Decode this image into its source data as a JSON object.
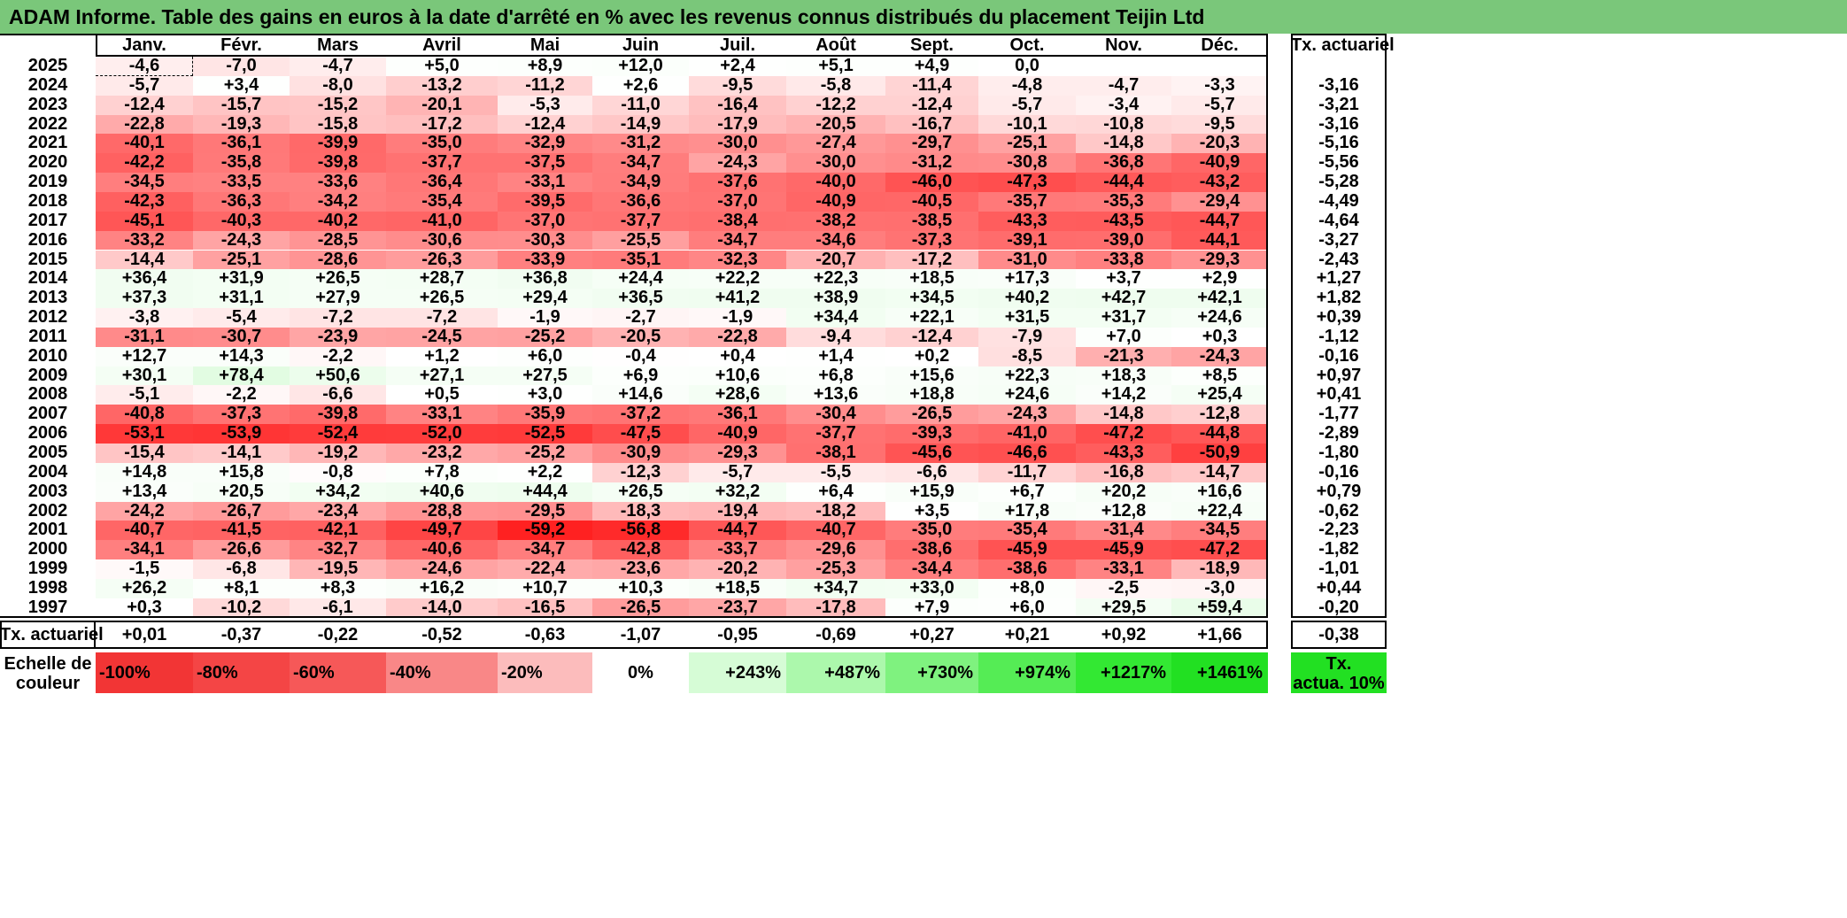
{
  "title": "ADAM Informe. Table des gains en euros à la date d'arrêté en % avec les revenus connus distribués du placement Teijin Ltd",
  "months": [
    "Janv.",
    "Févr.",
    "Mars",
    "Avril",
    "Mai",
    "Juin",
    "Juil.",
    "Août",
    "Sept.",
    "Oct.",
    "Nov.",
    "Déc."
  ],
  "actuarial_header": "Tx. actuariel",
  "rows": [
    {
      "year": "2025",
      "values": [
        "-4,6",
        "-7,0",
        "-4,7",
        "+5,0",
        "+8,9",
        "+12,0",
        "+2,4",
        "+5,1",
        "+4,9",
        "0,0",
        "",
        ""
      ],
      "rate": ""
    },
    {
      "year": "2024",
      "values": [
        "-5,7",
        "+3,4",
        "-8,0",
        "-13,2",
        "-11,2",
        "+2,6",
        "-9,5",
        "-5,8",
        "-11,4",
        "-4,8",
        "-4,7",
        "-3,3"
      ],
      "rate": "-3,16"
    },
    {
      "year": "2023",
      "values": [
        "-12,4",
        "-15,7",
        "-15,2",
        "-20,1",
        "-5,3",
        "-11,0",
        "-16,4",
        "-12,2",
        "-12,4",
        "-5,7",
        "-3,4",
        "-5,7"
      ],
      "rate": "-3,21"
    },
    {
      "year": "2022",
      "values": [
        "-22,8",
        "-19,3",
        "-15,8",
        "-17,2",
        "-12,4",
        "-14,9",
        "-17,9",
        "-20,5",
        "-16,7",
        "-10,1",
        "-10,8",
        "-9,5"
      ],
      "rate": "-3,16"
    },
    {
      "year": "2021",
      "values": [
        "-40,1",
        "-36,1",
        "-39,9",
        "-35,0",
        "-32,9",
        "-31,2",
        "-30,0",
        "-27,4",
        "-29,7",
        "-25,1",
        "-14,8",
        "-20,3"
      ],
      "rate": "-5,16"
    },
    {
      "year": "2020",
      "values": [
        "-42,2",
        "-35,8",
        "-39,8",
        "-37,7",
        "-37,5",
        "-34,7",
        "-24,3",
        "-30,0",
        "-31,2",
        "-30,8",
        "-36,8",
        "-40,9"
      ],
      "rate": "-5,56"
    },
    {
      "year": "2019",
      "values": [
        "-34,5",
        "-33,5",
        "-33,6",
        "-36,4",
        "-33,1",
        "-34,9",
        "-37,6",
        "-40,0",
        "-46,0",
        "-47,3",
        "-44,4",
        "-43,2"
      ],
      "rate": "-5,28"
    },
    {
      "year": "2018",
      "values": [
        "-42,3",
        "-36,3",
        "-34,2",
        "-35,4",
        "-39,5",
        "-36,6",
        "-37,0",
        "-40,9",
        "-40,5",
        "-35,7",
        "-35,3",
        "-29,4"
      ],
      "rate": "-4,49"
    },
    {
      "year": "2017",
      "values": [
        "-45,1",
        "-40,3",
        "-40,2",
        "-41,0",
        "-37,0",
        "-37,7",
        "-38,4",
        "-38,2",
        "-38,5",
        "-43,3",
        "-43,5",
        "-44,7"
      ],
      "rate": "-4,64"
    },
    {
      "year": "2016",
      "values": [
        "-33,2",
        "-24,3",
        "-28,5",
        "-30,6",
        "-30,3",
        "-25,5",
        "-34,7",
        "-34,6",
        "-37,3",
        "-39,1",
        "-39,0",
        "-44,1"
      ],
      "rate": "-3,27"
    },
    {
      "year": "2015",
      "values": [
        "-14,4",
        "-25,1",
        "-28,6",
        "-26,3",
        "-33,9",
        "-35,1",
        "-32,3",
        "-20,7",
        "-17,2",
        "-31,0",
        "-33,8",
        "-29,3"
      ],
      "rate": "-2,43"
    },
    {
      "year": "2014",
      "values": [
        "+36,4",
        "+31,9",
        "+26,5",
        "+28,7",
        "+36,8",
        "+24,4",
        "+22,2",
        "+22,3",
        "+18,5",
        "+17,3",
        "+3,7",
        "+2,9"
      ],
      "rate": "+1,27"
    },
    {
      "year": "2013",
      "values": [
        "+37,3",
        "+31,1",
        "+27,9",
        "+26,5",
        "+29,4",
        "+36,5",
        "+41,2",
        "+38,9",
        "+34,5",
        "+40,2",
        "+42,7",
        "+42,1"
      ],
      "rate": "+1,82"
    },
    {
      "year": "2012",
      "values": [
        "-3,8",
        "-5,4",
        "-7,2",
        "-7,2",
        "-1,9",
        "-2,7",
        "-1,9",
        "+34,4",
        "+22,1",
        "+31,5",
        "+31,7",
        "+24,6"
      ],
      "rate": "+0,39"
    },
    {
      "year": "2011",
      "values": [
        "-31,1",
        "-30,7",
        "-23,9",
        "-24,5",
        "-25,2",
        "-20,5",
        "-22,8",
        "-9,4",
        "-12,4",
        "-7,9",
        "+7,0",
        "+0,3"
      ],
      "rate": "-1,12"
    },
    {
      "year": "2010",
      "values": [
        "+12,7",
        "+14,3",
        "-2,2",
        "+1,2",
        "+6,0",
        "-0,4",
        "+0,4",
        "+1,4",
        "+0,2",
        "-8,5",
        "-21,3",
        "-24,3"
      ],
      "rate": "-0,16"
    },
    {
      "year": "2009",
      "values": [
        "+30,1",
        "+78,4",
        "+50,6",
        "+27,1",
        "+27,5",
        "+6,9",
        "+10,6",
        "+6,8",
        "+15,6",
        "+22,3",
        "+18,3",
        "+8,5"
      ],
      "rate": "+0,97"
    },
    {
      "year": "2008",
      "values": [
        "-5,1",
        "-2,2",
        "-6,6",
        "+0,5",
        "+3,0",
        "+14,6",
        "+28,6",
        "+13,6",
        "+18,8",
        "+24,6",
        "+14,2",
        "+25,4"
      ],
      "rate": "+0,41"
    },
    {
      "year": "2007",
      "values": [
        "-40,8",
        "-37,3",
        "-39,8",
        "-33,1",
        "-35,9",
        "-37,2",
        "-36,1",
        "-30,4",
        "-26,5",
        "-24,3",
        "-14,8",
        "-12,8"
      ],
      "rate": "-1,77"
    },
    {
      "year": "2006",
      "values": [
        "-53,1",
        "-53,9",
        "-52,4",
        "-52,0",
        "-52,5",
        "-47,5",
        "-40,9",
        "-37,7",
        "-39,3",
        "-41,0",
        "-47,2",
        "-44,8"
      ],
      "rate": "-2,89"
    },
    {
      "year": "2005",
      "values": [
        "-15,4",
        "-14,1",
        "-19,2",
        "-23,2",
        "-25,2",
        "-30,9",
        "-29,3",
        "-38,1",
        "-45,6",
        "-46,6",
        "-43,3",
        "-50,9"
      ],
      "rate": "-1,80"
    },
    {
      "year": "2004",
      "values": [
        "+14,8",
        "+15,8",
        "-0,8",
        "+7,8",
        "+2,2",
        "-12,3",
        "-5,7",
        "-5,5",
        "-6,6",
        "-11,7",
        "-16,8",
        "-14,7"
      ],
      "rate": "-0,16"
    },
    {
      "year": "2003",
      "values": [
        "+13,4",
        "+20,5",
        "+34,2",
        "+40,6",
        "+44,4",
        "+26,5",
        "+32,2",
        "+6,4",
        "+15,9",
        "+6,7",
        "+20,2",
        "+16,6"
      ],
      "rate": "+0,79"
    },
    {
      "year": "2002",
      "values": [
        "-24,2",
        "-26,7",
        "-23,4",
        "-28,8",
        "-29,5",
        "-18,3",
        "-19,4",
        "-18,2",
        "+3,5",
        "+17,8",
        "+12,8",
        "+22,4"
      ],
      "rate": "-0,62"
    },
    {
      "year": "2001",
      "values": [
        "-40,7",
        "-41,5",
        "-42,1",
        "-49,7",
        "-59,2",
        "-56,8",
        "-44,7",
        "-40,7",
        "-35,0",
        "-35,4",
        "-31,4",
        "-34,5"
      ],
      "rate": "-2,23"
    },
    {
      "year": "2000",
      "values": [
        "-34,1",
        "-26,6",
        "-32,7",
        "-40,6",
        "-34,7",
        "-42,8",
        "-33,7",
        "-29,6",
        "-38,6",
        "-45,9",
        "-45,9",
        "-47,2"
      ],
      "rate": "-1,82"
    },
    {
      "year": "1999",
      "values": [
        "-1,5",
        "-6,8",
        "-19,5",
        "-24,6",
        "-22,4",
        "-23,6",
        "-20,2",
        "-25,3",
        "-34,4",
        "-38,6",
        "-33,1",
        "-18,9"
      ],
      "rate": "-1,01"
    },
    {
      "year": "1998",
      "values": [
        "+26,2",
        "+8,1",
        "+8,3",
        "+16,2",
        "+10,7",
        "+10,3",
        "+18,5",
        "+34,7",
        "+33,0",
        "+8,0",
        "-2,5",
        "-3,0"
      ],
      "rate": "+0,44"
    },
    {
      "year": "1997",
      "values": [
        "+0,3",
        "-10,2",
        "-6,1",
        "-14,0",
        "-16,5",
        "-26,5",
        "-23,7",
        "-17,8",
        "+7,9",
        "+6,0",
        "+29,5",
        "+59,4"
      ],
      "rate": "-0,20"
    }
  ],
  "footer": {
    "label": "Tx. actuariel",
    "values": [
      "+0,01",
      "-0,37",
      "-0,22",
      "-0,52",
      "-0,63",
      "-1,07",
      "-0,95",
      "-0,69",
      "+0,27",
      "+0,21",
      "+0,92",
      "+1,66"
    ],
    "rate": "-0,38"
  },
  "scale": {
    "label_line1": "Echelle de",
    "label_line2": "couleur",
    "items": [
      {
        "text": "-100%",
        "color": "#f23535",
        "align": "left"
      },
      {
        "text": "-80%",
        "color": "#f44545",
        "align": "left"
      },
      {
        "text": "-60%",
        "color": "#f65858",
        "align": "left"
      },
      {
        "text": "-40%",
        "color": "#f98787",
        "align": "left"
      },
      {
        "text": "-20%",
        "color": "#fcbcbc",
        "align": "left"
      },
      {
        "text": "0%",
        "color": "#ffffff",
        "align": "center"
      },
      {
        "text": "+243%",
        "color": "#d6fcd6",
        "align": "right"
      },
      {
        "text": "+487%",
        "color": "#acf8ac",
        "align": "right"
      },
      {
        "text": "+730%",
        "color": "#7ff27f",
        "align": "right"
      },
      {
        "text": "+974%",
        "color": "#55ec55",
        "align": "right"
      },
      {
        "text": "+1217%",
        "color": "#33e833",
        "align": "right"
      },
      {
        "text": "+1461%",
        "color": "#22e022",
        "align": "right"
      }
    ],
    "rate_line1": "Tx.",
    "rate_line2": "actua. 10%",
    "rate_color": "#22e022"
  },
  "colors": {
    "title_bg": "#7ac77a",
    "negative_max": "#ff1a1a",
    "positive_max": "#22e022"
  }
}
